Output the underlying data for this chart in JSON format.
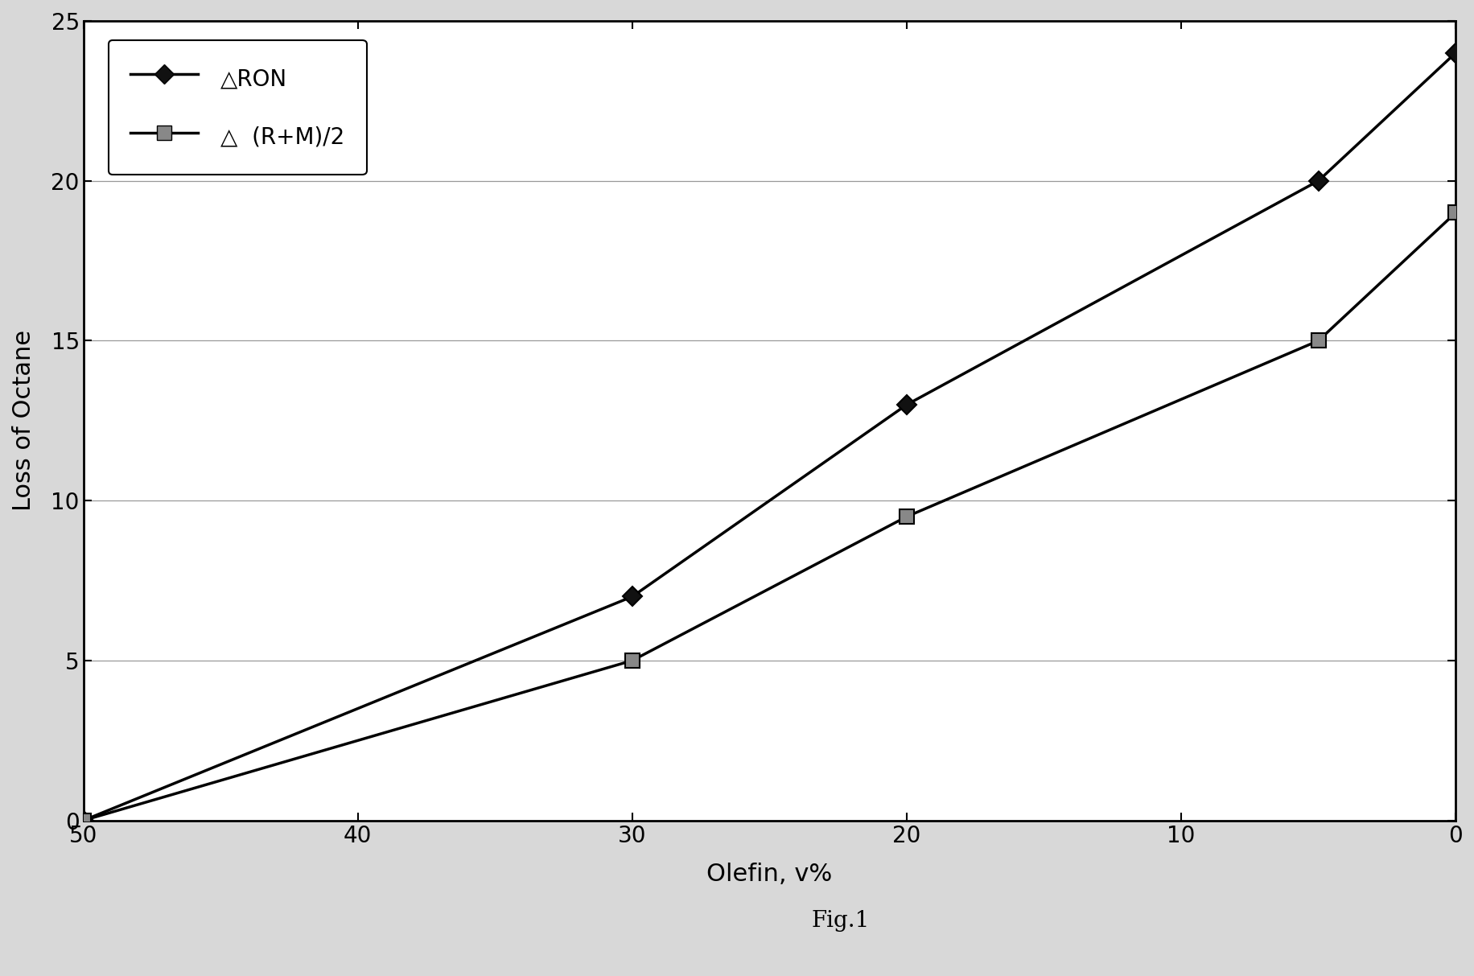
{
  "ron_x": [
    50,
    30,
    20,
    5,
    0
  ],
  "ron_y": [
    0,
    7,
    13,
    20,
    24
  ],
  "rpm_x": [
    50,
    30,
    20,
    5,
    0
  ],
  "rpm_y": [
    0,
    5,
    9.5,
    15,
    19
  ],
  "ron_label": "△RON",
  "rpm_label": "△  (R+M)/2",
  "xlabel": "Olefin, v%",
  "ylabel": "Loss of Octane",
  "caption": "Fig.1",
  "xlim": [
    50,
    0
  ],
  "ylim": [
    0,
    25
  ],
  "xticks": [
    50,
    40,
    30,
    20,
    10,
    0
  ],
  "yticks": [
    0,
    5,
    10,
    15,
    20,
    25
  ],
  "line_color": "#000000",
  "fig_bg": "#d8d8d8",
  "plot_bg": "#ffffff",
  "legend_bg": "#ffffff",
  "label_fontsize": 22,
  "tick_fontsize": 20,
  "legend_fontsize": 20,
  "caption_fontsize": 20
}
